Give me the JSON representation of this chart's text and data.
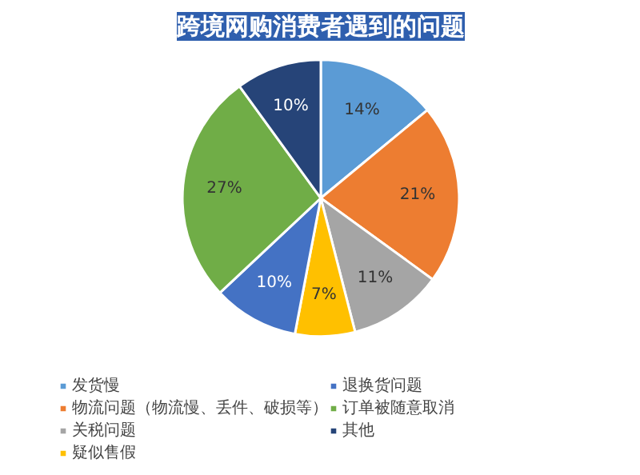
{
  "chart_data": {
    "type": "pie",
    "title": "跨境网购消费者遇到的问题",
    "categories": [
      "发货慢",
      "物流问题（物流慢、丢件、破损等）",
      "关税问题",
      "疑似售假",
      "退换货问题",
      "订单被随意取消",
      "其他"
    ],
    "values": [
      14,
      21,
      11,
      7,
      10,
      27,
      10
    ],
    "value_labels": [
      "14%",
      "21%",
      "11%",
      "7%",
      "10%",
      "27%",
      "10%"
    ],
    "colors": [
      "#5b9bd5",
      "#ed7d31",
      "#a5a5a5",
      "#ffc000",
      "#4472c4",
      "#70ad47",
      "#264478"
    ],
    "legend": "bottom"
  }
}
